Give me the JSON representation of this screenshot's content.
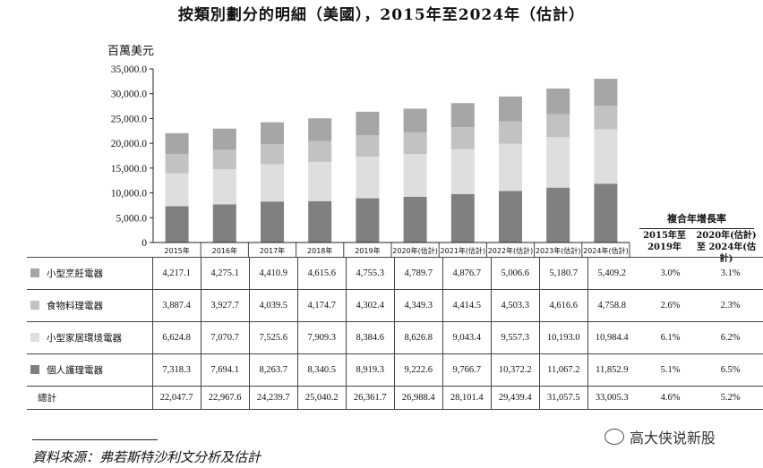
{
  "title": "按類別劃分的明細（美國），2015年至2024年（估計）",
  "chart_data": {
    "type": "bar",
    "stacked": true,
    "unit_label": "百萬美元",
    "ylim": [
      0,
      35000
    ],
    "yticks": [
      "35,000.0",
      "30,000.0",
      "25,000.0",
      "20,000.0",
      "15,000.0",
      "10,000.0",
      "5,000.0",
      "0"
    ],
    "ytick_values": [
      35000,
      30000,
      25000,
      20000,
      15000,
      10000,
      5000,
      0
    ],
    "categories": [
      "2015年",
      "2016年",
      "2017年",
      "2018年",
      "2019年",
      "2020年(估計)",
      "2021年(估計)",
      "2022年(估計)",
      "2023年(估計)",
      "2024年(估計)"
    ],
    "series": [
      {
        "name": "個人護理電器",
        "color": "#808080",
        "values": [
          7318.3,
          7694.1,
          8263.7,
          8340.5,
          8919.3,
          9222.6,
          9766.7,
          10372.2,
          11067.2,
          11852.9
        ],
        "labels": [
          "7,318.3",
          "7,694.1",
          "8,263.7",
          "8,340.5",
          "8,919.3",
          "9,222.6",
          "9,766.7",
          "10,372.2",
          "11,067.2",
          "11,852.9"
        ],
        "cagr": [
          "5.1%",
          "6.5%"
        ]
      },
      {
        "name": "小型家居環境電器",
        "color": "#dedede",
        "values": [
          6624.8,
          7070.7,
          7525.6,
          7909.3,
          8384.6,
          8626.8,
          9043.4,
          9557.3,
          10193.0,
          10984.4
        ],
        "labels": [
          "6,624.8",
          "7,070.7",
          "7,525.6",
          "7,909.3",
          "8,384.6",
          "8,626.8",
          "9,043.4",
          "9,557.3",
          "10,193.0",
          "10,984.4"
        ],
        "cagr": [
          "6.1%",
          "6.2%"
        ]
      },
      {
        "name": "食物料理電器",
        "color": "#c2c2c2",
        "values": [
          3887.4,
          3927.7,
          4039.5,
          4174.7,
          4302.4,
          4349.3,
          4414.5,
          4503.3,
          4616.6,
          4758.8
        ],
        "labels": [
          "3,887.4",
          "3,927.7",
          "4,039.5",
          "4,174.7",
          "4,302.4",
          "4,349.3",
          "4,414.5",
          "4,503.3",
          "4,616.6",
          "4,758.8"
        ],
        "cagr": [
          "2.6%",
          "2.3%"
        ]
      },
      {
        "name": "小型烹飪電器",
        "color": "#a6a6a6",
        "values": [
          4217.1,
          4275.1,
          4410.9,
          4615.6,
          4755.3,
          4789.7,
          4876.7,
          5006.6,
          5180.7,
          5409.2
        ],
        "labels": [
          "4,217.1",
          "4,275.1",
          "4,410.9",
          "4,615.6",
          "4,755.3",
          "4,789.7",
          "4,876.7",
          "5,006.6",
          "5,180.7",
          "5,409.2"
        ],
        "cagr": [
          "3.0%",
          "3.1%"
        ]
      }
    ],
    "table_order": [
      3,
      2,
      1,
      0
    ],
    "total": {
      "name": "總計",
      "labels": [
        "22,047.7",
        "22,967.6",
        "24,239.7",
        "25,040.2",
        "26,361.7",
        "26,988.4",
        "28,101.4",
        "29,439.4",
        "31,057.5",
        "33,005.3"
      ],
      "cagr": [
        "4.6%",
        "5.2%"
      ]
    },
    "cagr_title": "複合年增長率",
    "cagr_headers": [
      "2015年至 2019年",
      "2020年(估計)至 2024年(估計)"
    ]
  },
  "source": "資料來源：弗若斯特沙利文分析及估計",
  "watermark": "高大侠说新股"
}
